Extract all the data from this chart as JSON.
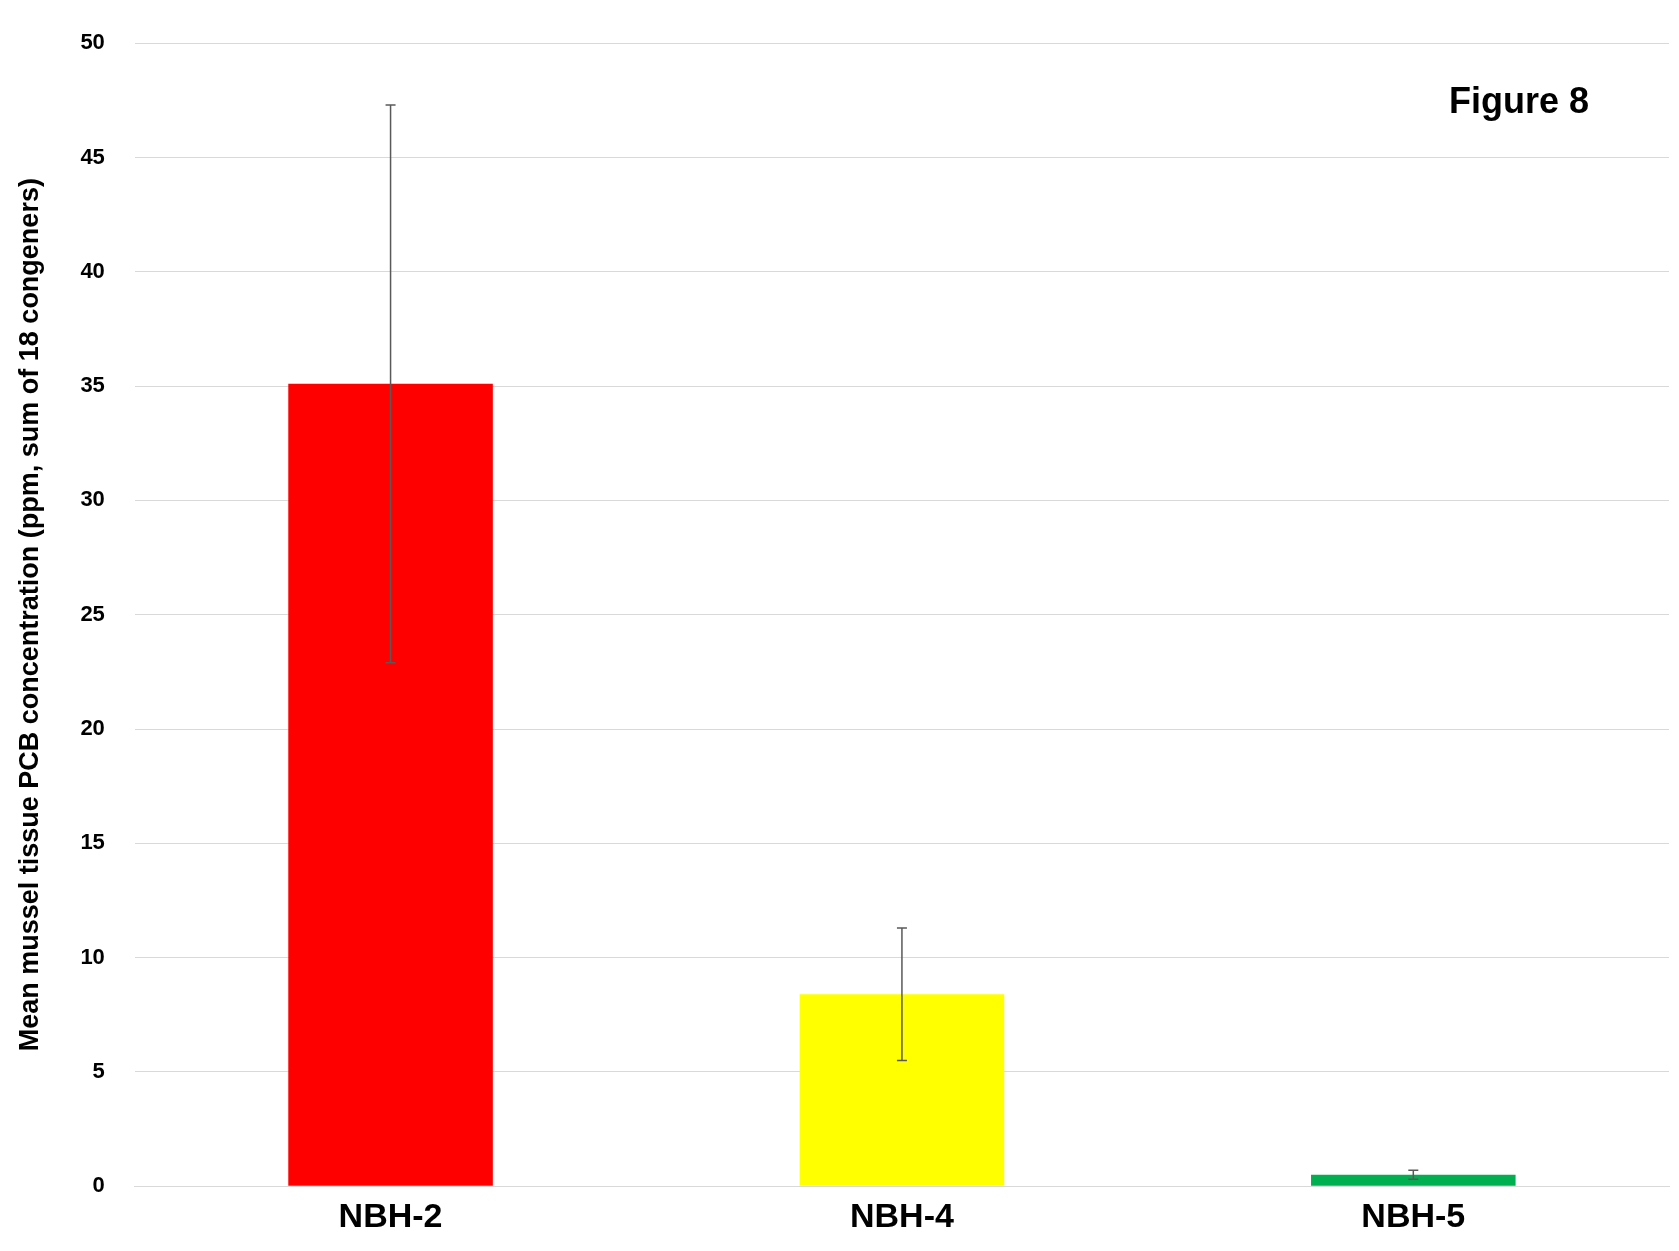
{
  "chart_data": {
    "type": "bar",
    "ylabel": "Mean mussel tissue PCB concentration (ppm, sum of 18 congeners)",
    "categories": [
      "NBH-2",
      "NBH-4",
      "NBH-5"
    ],
    "values": [
      35.1,
      8.4,
      0.5
    ],
    "colors": [
      "#ff0000",
      "#ffff00",
      "#00b050"
    ],
    "errors": [
      12.2,
      2.9,
      0.2
    ],
    "ylim": [
      0,
      50
    ],
    "yticks": [
      0,
      5,
      10,
      15,
      20,
      25,
      30,
      35,
      40,
      45,
      50
    ],
    "grid": "y",
    "annotations": [
      "Figure 8"
    ]
  }
}
